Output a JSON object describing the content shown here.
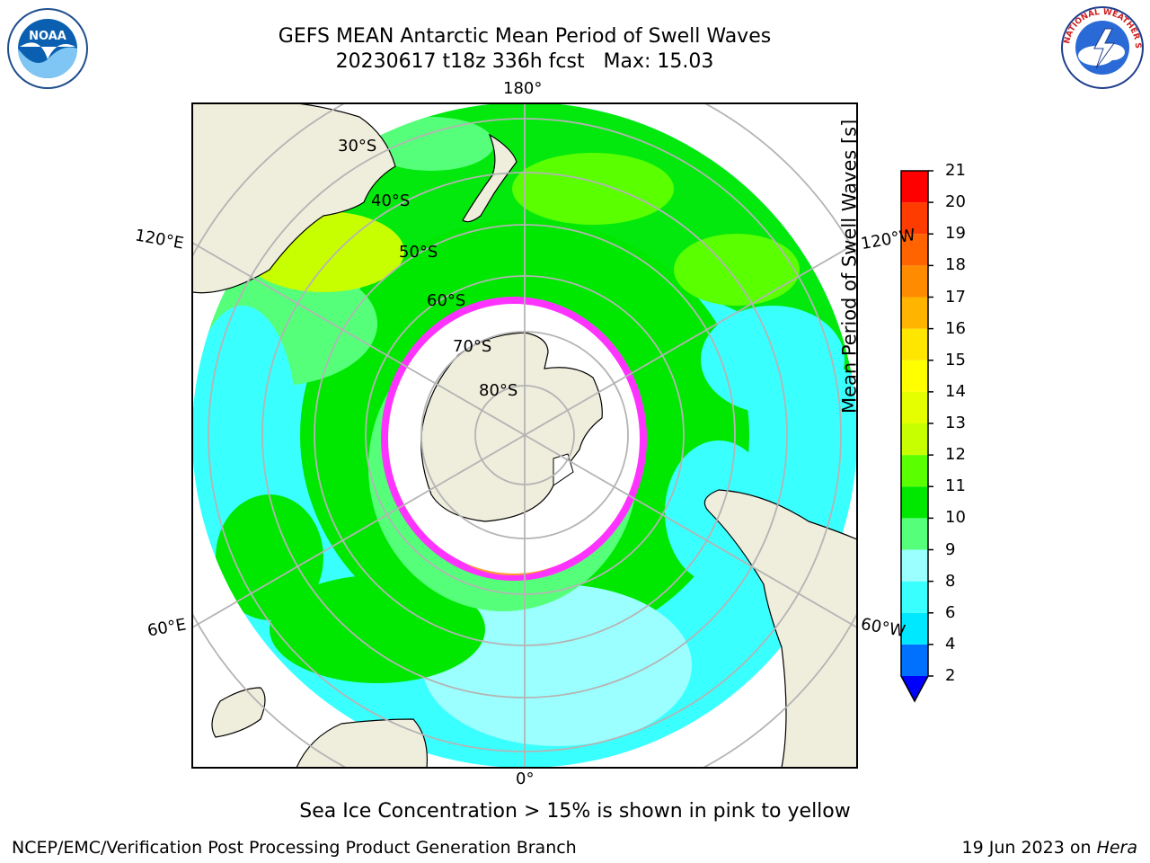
{
  "title": {
    "line1": "GEFS MEAN Antarctic Mean Period of Swell Waves",
    "line2": "20230617 t18z 336h fcst   Max: 15.03"
  },
  "logos": {
    "noaa": {
      "text": "NOAA",
      "ring_text": "NATIONAL OCEANIC AND ATMOSPHERIC ADMINISTRATION · U.S. DEPARTMENT OF COMMERCE"
    },
    "nws": {
      "ring_text": "NATIONAL WEATHER SERVICE"
    }
  },
  "map": {
    "projection": "south-polar-stereographic",
    "longitude_labels": {
      "top": "180°",
      "bottom": "0°",
      "left_upper": "120°E",
      "right_upper": "120°W",
      "left_lower": "60°E",
      "right_lower": "60°W"
    },
    "latitude_labels": [
      "30°S",
      "40°S",
      "50°S",
      "60°S",
      "70°S",
      "80°S"
    ],
    "colors": {
      "land": "#efeddc",
      "ice_shelf": "#ffffff",
      "grid": "#b4b4b4",
      "sea_ice": "#ff33ff"
    }
  },
  "colorbar": {
    "label": "Mean Period of Swell Waves [s]",
    "ticks": [
      "21",
      "20",
      "19",
      "18",
      "17",
      "16",
      "15",
      "14",
      "13",
      "12",
      "11",
      "10",
      "9",
      "8",
      "6",
      "4",
      "2"
    ],
    "bins": [
      {
        "lo": 2,
        "hi": 4,
        "color": "#0070ff"
      },
      {
        "lo": 4,
        "hi": 6,
        "color": "#00e8ff"
      },
      {
        "lo": 6,
        "hi": 8,
        "color": "#3affff"
      },
      {
        "lo": 8,
        "hi": 9,
        "color": "#9cffff"
      },
      {
        "lo": 9,
        "hi": 10,
        "color": "#55ff7a"
      },
      {
        "lo": 10,
        "hi": 11,
        "color": "#00e800"
      },
      {
        "lo": 11,
        "hi": 12,
        "color": "#5aff00"
      },
      {
        "lo": 12,
        "hi": 13,
        "color": "#c8ff00"
      },
      {
        "lo": 13,
        "hi": 14,
        "color": "#e6ff00"
      },
      {
        "lo": 14,
        "hi": 15,
        "color": "#ffff00"
      },
      {
        "lo": 15,
        "hi": 16,
        "color": "#ffe600"
      },
      {
        "lo": 16,
        "hi": 17,
        "color": "#ffb400"
      },
      {
        "lo": 17,
        "hi": 18,
        "color": "#ff8c00"
      },
      {
        "lo": 18,
        "hi": 19,
        "color": "#ff6400"
      },
      {
        "lo": 19,
        "hi": 20,
        "color": "#ff3c00"
      },
      {
        "lo": 20,
        "hi": 21,
        "color": "#ff0000"
      }
    ],
    "under_color": "#0000ff"
  },
  "caption": "Sea Ice Concentration > 15% is shown in pink to yellow",
  "footer": {
    "left": "NCEP/EMC/Verification Post Processing Product Generation Branch",
    "right_date": "19 Jun 2023 on ",
    "right_machine": "Hera"
  }
}
